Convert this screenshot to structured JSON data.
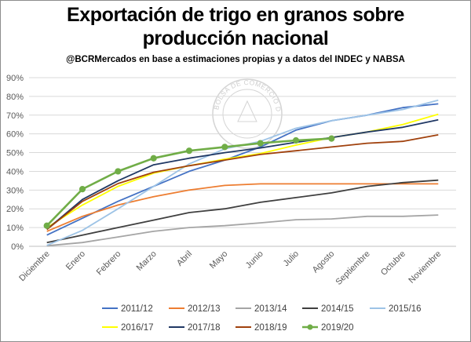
{
  "chart_data": {
    "type": "line",
    "title_line1": "Exportación de trigo en granos sobre",
    "title_line2": "producción nacional",
    "subtitle": "@BCRMercados  en base a estimaciones propias y a datos del INDEC y NABSA",
    "watermark": "BOLSA DE COMERCIO DE ROSARIO",
    "xlabel": "",
    "ylabel": "",
    "ylim": [
      0,
      90
    ],
    "y_ticks": [
      "0%",
      "10%",
      "20%",
      "30%",
      "40%",
      "50%",
      "60%",
      "70%",
      "80%",
      "90%"
    ],
    "y_tick_values": [
      0,
      10,
      20,
      30,
      40,
      50,
      60,
      70,
      80,
      90
    ],
    "grid": true,
    "legend_position": "bottom",
    "categories": [
      "Diciembre",
      "Enero",
      "Febrero",
      "Marzo",
      "Abril",
      "Mayo",
      "Junio",
      "Julio",
      "Agosto",
      "Septiembre",
      "Octubre",
      "Noviembre"
    ],
    "series": [
      {
        "name": "2011/12",
        "color": "#4472c4",
        "values": [
          6,
          15,
          24,
          32,
          40,
          46,
          53,
          62,
          67,
          70,
          74,
          76
        ]
      },
      {
        "name": "2012/13",
        "color": "#ed7d31",
        "values": [
          8,
          16,
          22,
          26.5,
          30,
          32.5,
          33.3,
          33.3,
          33.3,
          33.3,
          33.3,
          33.3
        ]
      },
      {
        "name": "2013/14",
        "color": "#a5a5a5",
        "values": [
          0.3,
          2,
          5,
          8,
          10,
          11,
          12.5,
          14.2,
          14.6,
          16,
          16,
          16.7
        ]
      },
      {
        "name": "2014/15",
        "color": "#3f3f3f",
        "values": [
          2,
          6,
          10,
          14,
          18,
          20,
          23.5,
          26,
          28.5,
          32,
          34,
          35.3
        ]
      },
      {
        "name": "2015/16",
        "color": "#9dc3e6",
        "values": [
          0.5,
          8.5,
          20,
          32,
          44,
          52,
          56,
          63,
          67,
          70,
          73,
          78
        ]
      },
      {
        "name": "2016/17",
        "color": "#ffff00",
        "values": [
          10,
          22,
          32,
          39,
          43,
          46.5,
          49.5,
          54,
          58,
          61,
          65,
          70.5
        ]
      },
      {
        "name": "2017/18",
        "color": "#203864",
        "values": [
          9,
          25,
          35,
          43.5,
          47,
          50,
          52.5,
          55.5,
          58,
          61,
          63.5,
          67.5
        ]
      },
      {
        "name": "2018/19",
        "color": "#a0410d",
        "values": [
          9,
          24,
          33.5,
          39.5,
          43,
          46,
          49,
          51,
          53,
          55,
          56,
          59.5
        ]
      },
      {
        "name": "2019/20",
        "color": "#70ad47",
        "markers": true,
        "values": [
          11,
          30.5,
          40,
          47,
          51,
          53,
          55,
          56.5,
          57.5,
          null,
          null,
          null
        ]
      }
    ]
  }
}
